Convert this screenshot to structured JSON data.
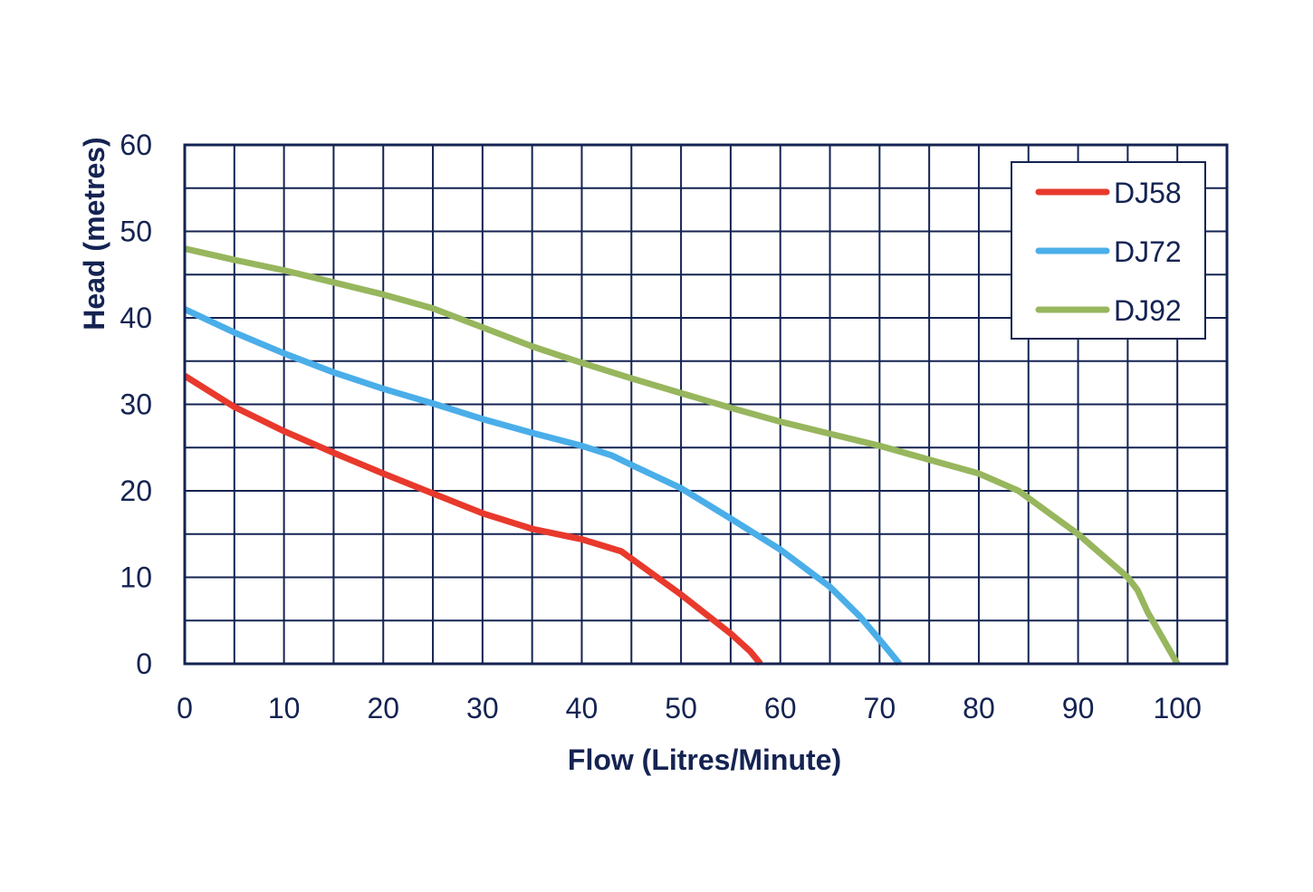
{
  "chart_data": {
    "type": "line",
    "title": "",
    "xlabel": "Flow (Litres/Minute)",
    "ylabel": "Head (metres)",
    "xlim": [
      0,
      105
    ],
    "ylim": [
      0,
      60
    ],
    "x_ticks": [
      0,
      10,
      20,
      30,
      40,
      50,
      60,
      70,
      80,
      90,
      100
    ],
    "y_ticks": [
      0,
      10,
      20,
      30,
      40,
      50,
      60
    ],
    "x_tick_labels": [
      "0",
      "10",
      "20",
      "30",
      "40",
      "50",
      "60",
      "70",
      "80",
      "90",
      "100"
    ],
    "y_tick_labels": [
      "0",
      "10",
      "20",
      "30",
      "40",
      "50",
      "60"
    ],
    "x_grid_step": 5,
    "y_grid_step": 5,
    "grid": true,
    "legend_position": "top-right",
    "colors": {
      "grid": "#142352",
      "text": "#142352",
      "background": "#ffffff"
    },
    "series": [
      {
        "name": "DJ58",
        "color": "#e8392c",
        "points": [
          [
            0,
            33.3
          ],
          [
            5,
            29.7
          ],
          [
            10,
            26.9
          ],
          [
            15,
            24.4
          ],
          [
            20,
            22.0
          ],
          [
            25,
            19.7
          ],
          [
            30,
            17.4
          ],
          [
            35,
            15.6
          ],
          [
            40,
            14.4
          ],
          [
            44,
            13.0
          ],
          [
            50,
            8.0
          ],
          [
            55,
            3.5
          ],
          [
            57,
            1.4
          ],
          [
            58,
            0
          ]
        ]
      },
      {
        "name": "DJ72",
        "color": "#4aaee9",
        "points": [
          [
            0,
            41.0
          ],
          [
            5,
            38.3
          ],
          [
            10,
            35.9
          ],
          [
            15,
            33.7
          ],
          [
            20,
            31.8
          ],
          [
            25,
            30.1
          ],
          [
            30,
            28.3
          ],
          [
            35,
            26.7
          ],
          [
            40,
            25.2
          ],
          [
            43,
            24.1
          ],
          [
            45,
            23.0
          ],
          [
            50,
            20.3
          ],
          [
            55,
            16.8
          ],
          [
            60,
            13.2
          ],
          [
            65,
            8.9
          ],
          [
            68,
            5.5
          ],
          [
            70,
            2.8
          ],
          [
            72,
            0
          ]
        ]
      },
      {
        "name": "DJ92",
        "color": "#97b65d",
        "points": [
          [
            0,
            48.0
          ],
          [
            5,
            46.7
          ],
          [
            10,
            45.5
          ],
          [
            15,
            44.1
          ],
          [
            20,
            42.7
          ],
          [
            25,
            41.1
          ],
          [
            30,
            38.9
          ],
          [
            35,
            36.7
          ],
          [
            40,
            34.8
          ],
          [
            45,
            33.0
          ],
          [
            50,
            31.3
          ],
          [
            55,
            29.6
          ],
          [
            60,
            28.0
          ],
          [
            65,
            26.6
          ],
          [
            70,
            25.2
          ],
          [
            75,
            23.6
          ],
          [
            80,
            22.0
          ],
          [
            84,
            20.0
          ],
          [
            87,
            17.5
          ],
          [
            90,
            15.0
          ],
          [
            93,
            12.0
          ],
          [
            95,
            10.0
          ],
          [
            96,
            8.5
          ],
          [
            97,
            6.0
          ],
          [
            98,
            4.0
          ],
          [
            100,
            0
          ]
        ]
      }
    ]
  }
}
